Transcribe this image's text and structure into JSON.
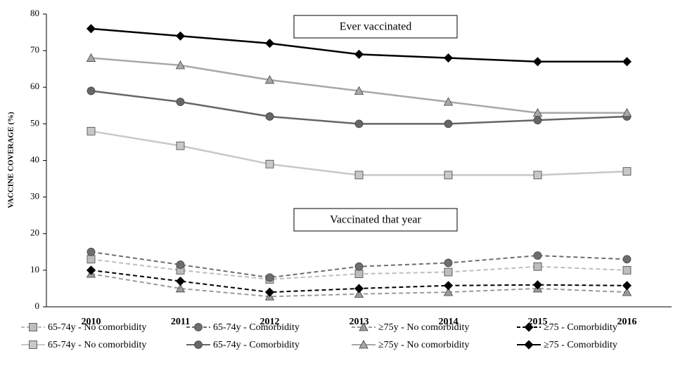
{
  "chart_data": {
    "type": "line",
    "y_label": "VACCINE COVERAGE (%)",
    "categories": [
      "2010",
      "2011",
      "2012",
      "2013",
      "2014",
      "2015",
      "2016"
    ],
    "ylim": [
      0,
      80
    ],
    "yticks": [
      0,
      10,
      20,
      30,
      40,
      50,
      60,
      70,
      80
    ],
    "annotations": [
      "Ever vaccinated",
      "Vaccinated that year"
    ],
    "legend": "bottom",
    "series": [
      {
        "name": "65-74y - No comorbidity",
        "color": "#bdbdbd",
        "marker": "square",
        "line_style": "dashed",
        "values": [
          13,
          10,
          7.5,
          9,
          9.5,
          11,
          10
        ]
      },
      {
        "name": "65-74y - Comorbidity",
        "color": "#6e6e6e",
        "marker": "circle",
        "line_style": "dashed",
        "values": [
          15,
          11.5,
          8,
          11,
          12,
          14,
          13
        ]
      },
      {
        "name": "≥75y - No comorbidity",
        "color": "#9a9a9a",
        "marker": "triangle",
        "line_style": "dashed",
        "values": [
          9,
          5,
          2.8,
          3.5,
          4,
          5,
          4
        ]
      },
      {
        "name": "≥75 - Comorbidity",
        "color": "#000000",
        "marker": "diamond",
        "line_style": "dashed",
        "values": [
          10,
          7,
          4,
          5,
          5.8,
          6,
          5.8
        ]
      },
      {
        "name": "65-74y - No comorbidity",
        "color": "#c8c8c8",
        "marker": "square",
        "line_style": "solid",
        "values": [
          48,
          44,
          39,
          36,
          36,
          36,
          37
        ]
      },
      {
        "name": "65-74y - Comorbidity",
        "color": "#666666",
        "marker": "circle",
        "line_style": "solid",
        "values": [
          59,
          56,
          52,
          50,
          50,
          51,
          52
        ]
      },
      {
        "name": "≥75y - No comorbidity",
        "color": "#a8a8a8",
        "marker": "triangle",
        "line_style": "solid",
        "values": [
          68,
          66,
          62,
          59,
          56,
          53,
          53
        ]
      },
      {
        "name": "≥75 - Comorbidity",
        "color": "#000000",
        "marker": "diamond",
        "line_style": "solid",
        "values": [
          76,
          74,
          72,
          69,
          68,
          67,
          67
        ]
      }
    ]
  }
}
